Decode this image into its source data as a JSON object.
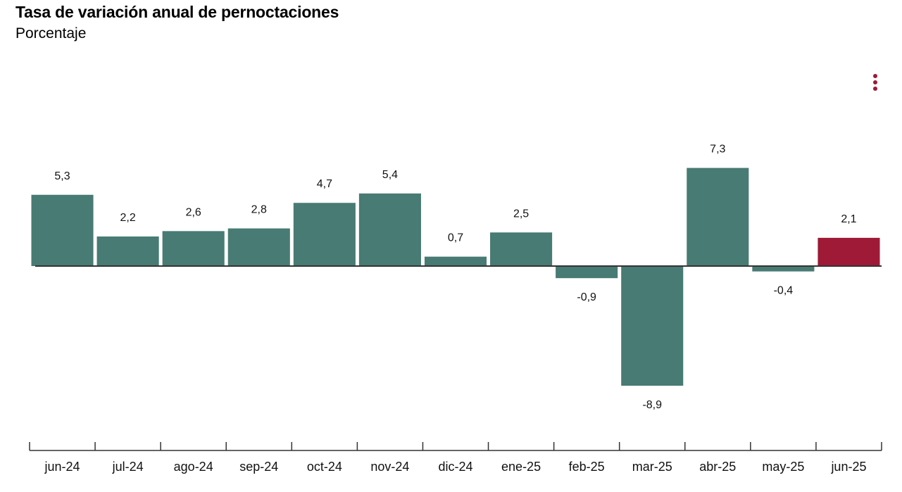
{
  "title": "Tasa de variación anual de pernoctaciones",
  "subtitle": "Porcentaje",
  "menu": {
    "icon": "vertical-dots-icon"
  },
  "colors": {
    "bar": "#477b73",
    "highlight": "#9e1a37",
    "axis": "#333333"
  },
  "chart_data": {
    "type": "bar",
    "title": "Tasa de variación anual de pernoctaciones",
    "subtitle": "Porcentaje",
    "xlabel": "",
    "ylabel": "",
    "categories": [
      "jun-24",
      "jul-24",
      "ago-24",
      "sep-24",
      "oct-24",
      "nov-24",
      "dic-24",
      "ene-25",
      "feb-25",
      "mar-25",
      "abr-25",
      "may-25",
      "jun-25"
    ],
    "values": [
      5.3,
      2.2,
      2.6,
      2.8,
      4.7,
      5.4,
      0.7,
      2.5,
      -0.9,
      -8.9,
      7.3,
      -0.4,
      2.1
    ],
    "labels": [
      "5,3",
      "2,2",
      "2,6",
      "2,8",
      "4,7",
      "5,4",
      "0,7",
      "2,5",
      "-0,9",
      "-8,9",
      "7,3",
      "-0,4",
      "2,1"
    ],
    "highlight_index": 12,
    "ylim": [
      -8.9,
      7.3
    ],
    "grid": false,
    "legend": "none"
  }
}
